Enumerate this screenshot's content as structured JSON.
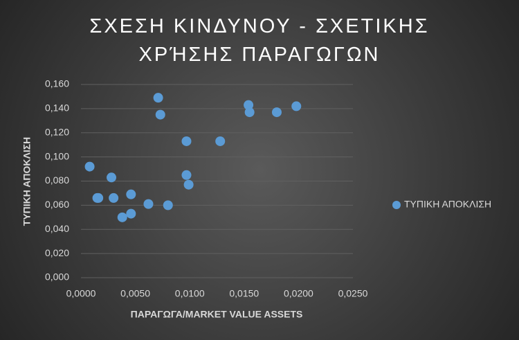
{
  "chart_data": {
    "type": "scatter",
    "title": "ΣΧΕΣΗ ΚΙΝΔΥΝΟΥ - ΣΧΕΤΙΚΗΣ ΧΡΉΣΗΣ ΠΑΡΑΓΩΓΩΝ",
    "x_label": "ΠΑΡΑΓΩΓΑ/MARKET VALUE ASSETS",
    "y_label": "ΤΥΠΙΚΗ ΑΠΟΚΛΙΣΗ",
    "series": [
      {
        "name": "ΤΥΠΙΚΗ ΑΠΟΚΛΙΣΗ",
        "color": "#5b9bd5",
        "x": [
          0.0008,
          0.0015,
          0.0016,
          0.0028,
          0.003,
          0.0038,
          0.0046,
          0.0046,
          0.0062,
          0.0071,
          0.0073,
          0.008,
          0.0097,
          0.0097,
          0.0099,
          0.0128,
          0.0154,
          0.0155,
          0.018,
          0.0198
        ],
        "values": [
          0.092,
          0.066,
          0.066,
          0.083,
          0.066,
          0.05,
          0.053,
          0.069,
          0.061,
          0.149,
          0.135,
          0.06,
          0.113,
          0.085,
          0.077,
          0.113,
          0.143,
          0.137,
          0.137,
          0.142
        ]
      }
    ],
    "xlim": [
      0,
      0.025
    ],
    "xticks": [
      {
        "value": 0,
        "label": "0,0000"
      },
      {
        "value": 0.005,
        "label": "0,0050"
      },
      {
        "value": 0.01,
        "label": "0,0100"
      },
      {
        "value": 0.015,
        "label": "0,0150"
      },
      {
        "value": 0.02,
        "label": "0,0200"
      },
      {
        "value": 0.025,
        "label": "0,0250"
      }
    ],
    "ylim": [
      0,
      0.16
    ],
    "yticks": [
      {
        "value": 0,
        "label": "0,000"
      },
      {
        "value": 0.02,
        "label": "0,020"
      },
      {
        "value": 0.04,
        "label": "0,040"
      },
      {
        "value": 0.06,
        "label": "0,060"
      },
      {
        "value": 0.08,
        "label": "0,080"
      },
      {
        "value": 0.1,
        "label": "0,100"
      },
      {
        "value": 0.12,
        "label": "0,120"
      },
      {
        "value": 0.14,
        "label": "0,140"
      },
      {
        "value": 0.16,
        "label": "0,160"
      }
    ],
    "grid": true,
    "legend": "right"
  }
}
